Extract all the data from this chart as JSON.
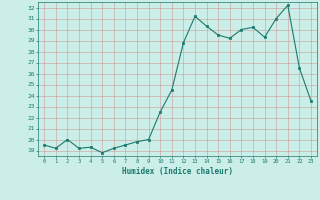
{
  "x": [
    0,
    1,
    2,
    3,
    4,
    5,
    6,
    7,
    8,
    9,
    10,
    11,
    12,
    13,
    14,
    15,
    16,
    17,
    18,
    19,
    20,
    21,
    22,
    23
  ],
  "y": [
    19.5,
    19.2,
    20.0,
    19.2,
    19.3,
    18.8,
    19.2,
    19.5,
    19.8,
    20.0,
    22.5,
    24.5,
    28.8,
    31.2,
    30.3,
    29.5,
    29.2,
    30.0,
    30.2,
    29.3,
    31.0,
    32.2,
    26.5,
    23.5
  ],
  "xlabel": "Humidex (Indice chaleur)",
  "xlim": [
    -0.5,
    23.5
  ],
  "ylim": [
    18.5,
    32.5
  ],
  "yticks": [
    19,
    20,
    21,
    22,
    23,
    24,
    25,
    26,
    27,
    28,
    29,
    30,
    31,
    32
  ],
  "xticks": [
    0,
    1,
    2,
    3,
    4,
    5,
    6,
    7,
    8,
    9,
    10,
    11,
    12,
    13,
    14,
    15,
    16,
    17,
    18,
    19,
    20,
    21,
    22,
    23
  ],
  "line_color": "#1a7a6e",
  "marker_color": "#1a7a6e",
  "bg_color": "#cceee8",
  "grid_color": "#b0b0b0",
  "axis_label_color": "#1a7a6e",
  "tick_label_color": "#1a7a6e"
}
